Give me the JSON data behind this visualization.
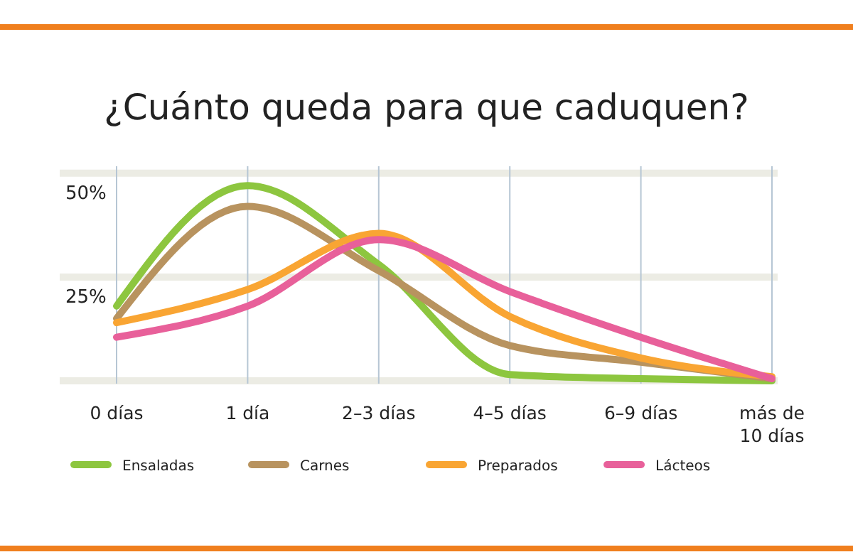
{
  "chart_data": {
    "type": "line",
    "title": "¿Cuánto queda para que caduquen?",
    "categories": [
      "0 días",
      "1 día",
      "2–3 días",
      "4–5 días",
      "6–9 días",
      "más de 10 días"
    ],
    "series": [
      {
        "name": "Ensaladas",
        "color": "#8dc63f",
        "values": [
          18,
          47,
          28,
          1.5,
          0.5,
          0
        ]
      },
      {
        "name": "Carnes",
        "color": "#b8935f",
        "values": [
          15,
          42,
          26.5,
          8.5,
          4.5,
          0.5
        ]
      },
      {
        "name": "Preparados",
        "color": "#f9a533",
        "values": [
          14,
          22,
          35.5,
          15.5,
          5.5,
          1
        ]
      },
      {
        "name": "Lácteos",
        "color": "#e8609a",
        "values": [
          10.5,
          18,
          34,
          21.5,
          10.5,
          0.5
        ]
      }
    ],
    "ylim": [
      0,
      51
    ],
    "yticks": [
      {
        "value": 0,
        "label": null
      },
      {
        "value": 25,
        "label": "25%"
      },
      {
        "value": 50,
        "label": "50%"
      }
    ],
    "grid": true,
    "legend": "bottom",
    "marker": "none",
    "line_style": "solid"
  }
}
